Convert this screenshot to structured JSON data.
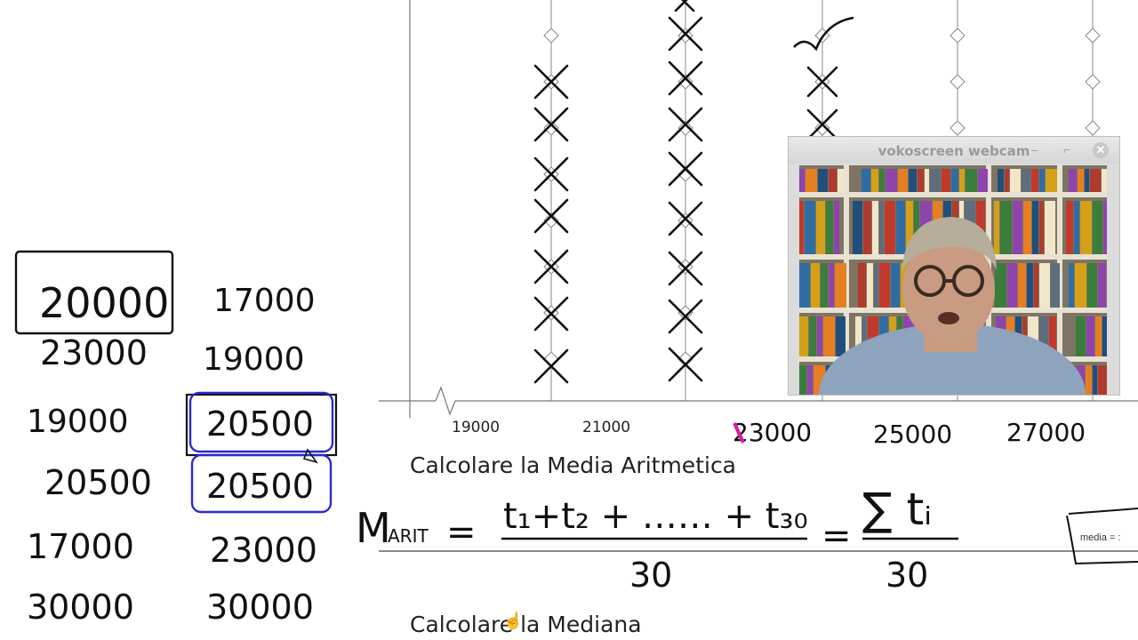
{
  "axis": {
    "tick_labels_printed": [
      "19000",
      "21000"
    ],
    "tick_labels_handwritten": [
      "23000",
      "25000",
      "27000"
    ]
  },
  "headings": {
    "media": "Calcolare la Media Aritmetica",
    "mediana": "Calcolare la Mediana"
  },
  "formula": {
    "lhs": "M",
    "lhs_sub": "ARIT",
    "equals": "=",
    "numerator": "t₁+t₂ + …… + t₃₀",
    "denominator": "30",
    "sum_numerator": "∑ tᵢ",
    "sum_denominator": "30"
  },
  "handwritten_values": {
    "col1": [
      "20000",
      "23000",
      "19000",
      "20500",
      "17000",
      "30000"
    ],
    "col2": [
      "17000",
      "19000",
      "20500",
      "20500",
      "23000",
      "30000"
    ]
  },
  "media_box": {
    "label": "media = :"
  },
  "webcam": {
    "title": "vokoscreen webcam",
    "minimize_icon": "minimize-icon",
    "restore_icon": "restore-icon",
    "close_icon": "close-icon"
  },
  "colors": {
    "ink": "#111111",
    "blue_box": "#2a2ad0",
    "axis": "#555555",
    "magenta_mark": "#d81ba8"
  }
}
